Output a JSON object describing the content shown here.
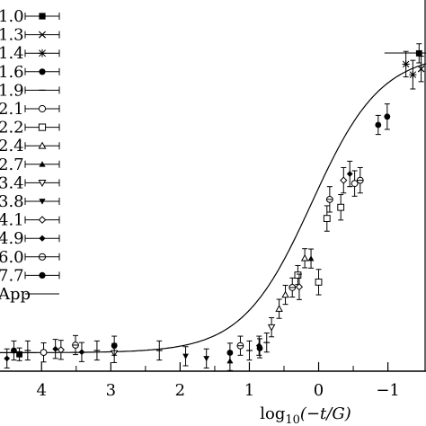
{
  "chart_data": {
    "type": "scatter",
    "title": "",
    "xlabel_main": "log",
    "xlabel_sub": "10",
    "xlabel_tail": "(−t/G)",
    "ylabel": "",
    "x_reversed": true,
    "xlim": [
      4.6,
      -1.55
    ],
    "ylim": [
      0.0,
      1.0
    ],
    "xticks": [
      4,
      3,
      2,
      1,
      0,
      -1
    ],
    "xtick_labels": [
      "4",
      "3",
      "2",
      "1",
      "0",
      "−1"
    ],
    "legend_position": "left",
    "series": [
      {
        "name": "1.0",
        "marker": "square-filled",
        "points": [
          [
            4.32,
            0.053
          ],
          [
            -1.45,
            0.999
          ]
        ],
        "err": [
          0.02,
          0.03
        ]
      },
      {
        "name": "1.3",
        "marker": "x",
        "points": [
          [
            -1.48,
            0.95
          ]
        ],
        "err": [
          0.04
        ]
      },
      {
        "name": "1.4",
        "marker": "star",
        "points": [
          [
            -1.26,
            0.965
          ],
          [
            -1.36,
            0.932
          ]
        ],
        "err": [
          0.04,
          0.045
        ]
      },
      {
        "name": "1.6",
        "marker": "circle-filled",
        "points": [
          [
            -0.86,
            0.774
          ]
        ],
        "err": [
          0.03
        ]
      },
      {
        "name": "1.9",
        "marker": "bar",
        "points": [
          [
            4.2,
            0.065
          ],
          [
            3.2,
            0.065
          ],
          [
            2.3,
            0.065
          ],
          [
            1.0,
            0.065
          ],
          [
            0.75,
            0.09
          ]
        ],
        "err": [
          0.03,
          0.03,
          0.03,
          0.03,
          0.03
        ]
      },
      {
        "name": "2.1",
        "marker": "circle-open",
        "points": [
          [
            3.97,
            0.059
          ],
          [
            -0.52,
            0.59
          ]
        ],
        "err": [
          0.03,
          0.04
        ]
      },
      {
        "name": "2.2",
        "marker": "square-open",
        "points": [
          [
            0.3,
            0.302
          ],
          [
            0.0,
            0.28
          ],
          [
            -0.12,
            0.48
          ],
          [
            -0.32,
            0.515
          ]
        ],
        "err": [
          0.03,
          0.04,
          0.04,
          0.04
        ]
      },
      {
        "name": "2.4",
        "marker": "triangle-up-open",
        "points": [
          [
            0.48,
            0.24
          ],
          [
            0.57,
            0.196
          ],
          [
            0.2,
            0.355
          ]
        ],
        "err": [
          0.03,
          0.03,
          0.03
        ]
      },
      {
        "name": "2.7",
        "marker": "triangle-up-filled",
        "points": [
          [
            1.28,
            0.032
          ],
          [
            0.11,
            0.354
          ]
        ],
        "err": [
          0.03,
          0.03
        ]
      },
      {
        "name": "3.4",
        "marker": "triangle-down-open",
        "points": [
          [
            2.95,
            0.057
          ],
          [
            0.68,
            0.138
          ]
        ],
        "err": [
          0.03,
          0.03
        ]
      },
      {
        "name": "3.8",
        "marker": "triangle-down-filled",
        "points": [
          [
            1.62,
            0.04
          ],
          [
            1.92,
            0.047
          ]
        ],
        "err": [
          0.03,
          0.03
        ]
      },
      {
        "name": "4.1",
        "marker": "diamond-open",
        "points": [
          [
            3.72,
            0.067
          ],
          [
            0.28,
            0.265
          ],
          [
            -0.36,
            0.6
          ]
        ],
        "err": [
          0.03,
          0.04,
          0.04
        ]
      },
      {
        "name": "4.9",
        "marker": "diamond-filled",
        "points": [
          [
            4.5,
            0.04
          ],
          [
            3.8,
            0.07
          ],
          [
            3.42,
            0.06
          ],
          [
            0.86,
            0.08
          ],
          [
            -0.45,
            0.62
          ]
        ],
        "err": [
          0.03,
          0.03,
          0.03,
          0.03,
          0.04
        ]
      },
      {
        "name": "6.0",
        "marker": "circle-dash",
        "points": [
          [
            3.51,
            0.082
          ],
          [
            1.13,
            0.08
          ],
          [
            0.38,
            0.263
          ],
          [
            -0.16,
            0.54
          ],
          [
            -0.6,
            0.6
          ]
        ],
        "err": [
          0.03,
          0.03,
          0.03,
          0.04,
          0.04
        ]
      },
      {
        "name": "7.7",
        "marker": "circle-filled",
        "points": [
          [
            4.4,
            0.065
          ],
          [
            2.95,
            0.08
          ],
          [
            1.28,
            0.058
          ],
          [
            0.85,
            0.072
          ],
          [
            -0.99,
            0.8
          ]
        ],
        "err": [
          0.03,
          0.03,
          0.03,
          0.03,
          0.04
        ]
      },
      {
        "name": "App",
        "marker": "line",
        "curve": {
          "baseline": 0.058,
          "top": 1.0,
          "center": 0.1,
          "width": 0.5
        }
      }
    ],
    "reference_line": {
      "y": 1.0,
      "x_from": -0.95,
      "x_to": -1.55
    }
  }
}
